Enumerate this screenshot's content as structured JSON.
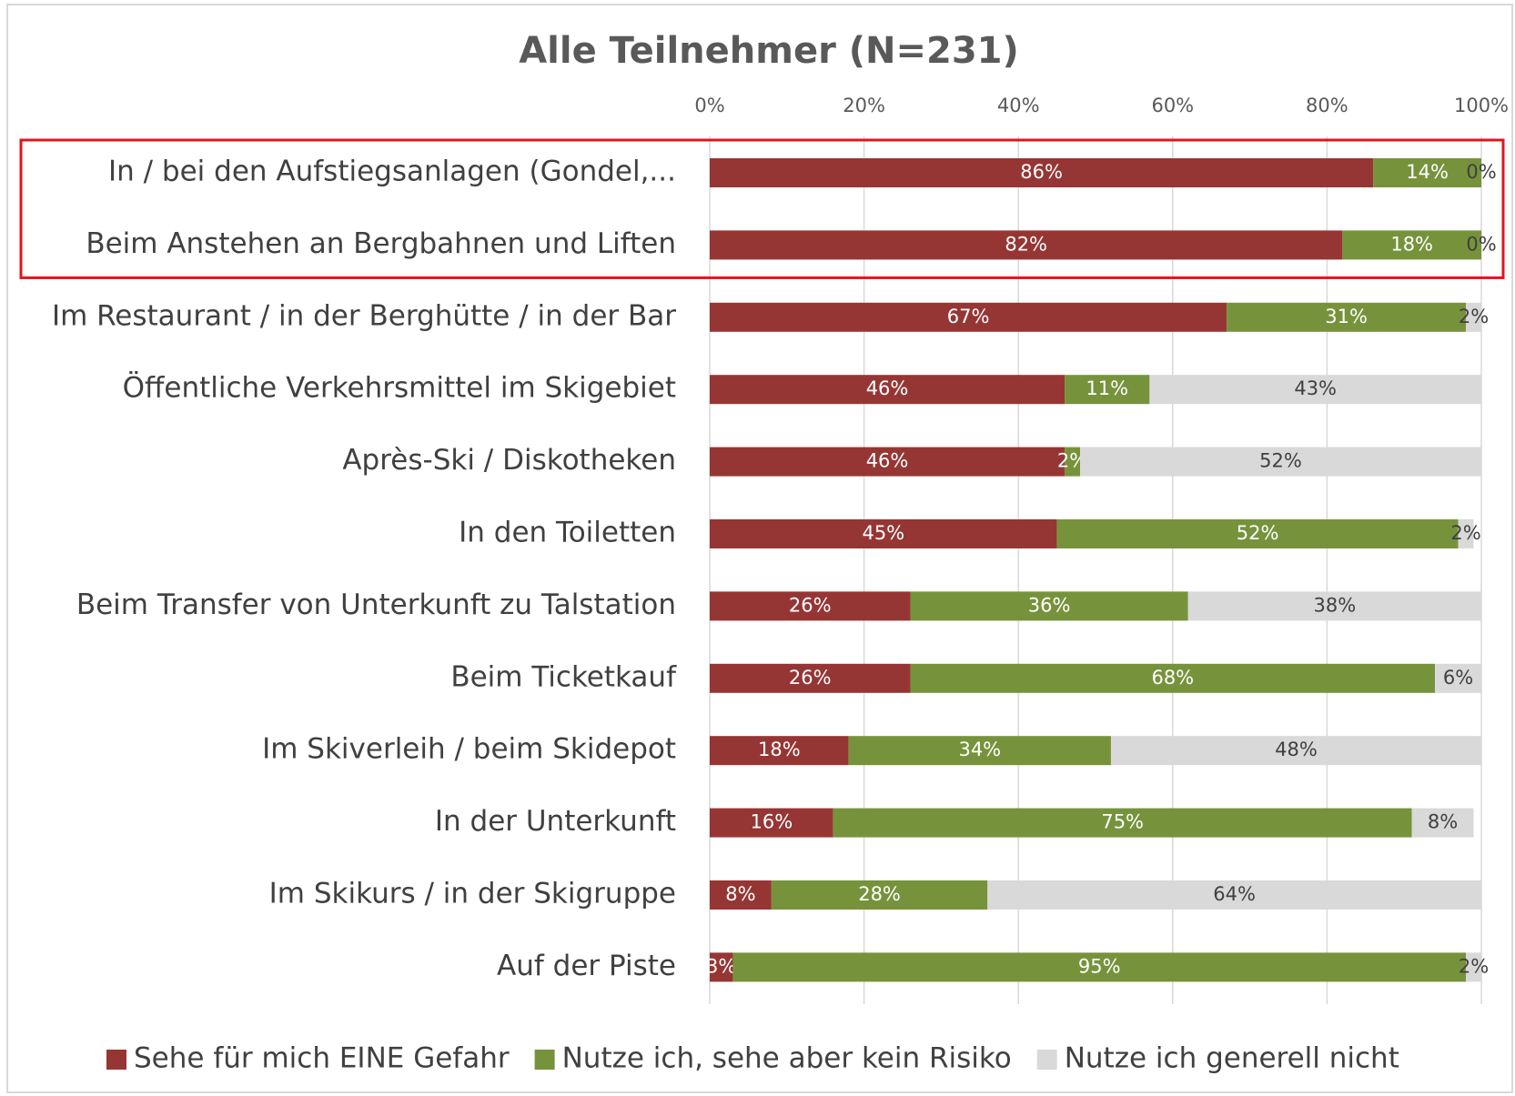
{
  "chart_data": {
    "type": "stacked_barh",
    "title": "Alle Teilnehmer (N=231)",
    "categories": [
      "In / bei den Aufstiegsanlagen (Gondel,...",
      "Beim Anstehen an Bergbahnen und Liften",
      "Im Restaurant / in der Berghütte / in der Bar",
      "Öffentliche Verkehrsmittel im Skigebiet",
      "Après-Ski / Diskotheken",
      "In den Toiletten",
      "Beim Transfer von Unterkunft zu Talstation",
      "Beim Ticketkauf",
      "Im Skiverleih / beim Skidepot",
      "In der Unterkunft",
      "Im Skikurs / in der Skigruppe",
      "Auf der Piste"
    ],
    "series": [
      {
        "name": "Sehe für mich EINE Gefahr",
        "color": "#963634",
        "values": [
          86,
          82,
          67,
          46,
          46,
          45,
          26,
          26,
          18,
          16,
          8,
          3
        ],
        "value_labels": [
          "86%",
          "82%",
          "67%",
          "46%",
          "46%",
          "45%",
          "26%",
          "26%",
          "18%",
          "16%",
          "8%",
          "3%"
        ]
      },
      {
        "name": "Nutze ich, sehe aber kein Risiko",
        "color": "#76933c",
        "values": [
          14,
          18,
          31,
          11,
          2,
          52,
          36,
          68,
          34,
          75,
          28,
          95
        ],
        "value_labels": [
          "14%",
          "18%",
          "31%",
          "11%",
          "2%",
          "52%",
          "36%",
          "68%",
          "34%",
          "75%",
          "28%",
          "95%"
        ]
      },
      {
        "name": "Nutze ich generell nicht",
        "color": "#d9d9d9",
        "values": [
          0,
          0,
          2,
          43,
          52,
          2,
          38,
          6,
          48,
          8,
          64,
          2
        ],
        "value_labels": [
          "0%",
          "0%",
          "2%",
          "43%",
          "52%",
          "2%",
          "38%",
          "6%",
          "48%",
          "8%",
          "64%",
          "2%"
        ]
      }
    ],
    "xlim": [
      0,
      100
    ],
    "xticks": [
      {
        "value": 0,
        "label": "0%"
      },
      {
        "value": 20,
        "label": "20%"
      },
      {
        "value": 40,
        "label": "40%"
      },
      {
        "value": 60,
        "label": "60%"
      },
      {
        "value": 80,
        "label": "80%"
      },
      {
        "value": 100,
        "label": "100%"
      }
    ],
    "grid": true,
    "legend": "bottom"
  }
}
